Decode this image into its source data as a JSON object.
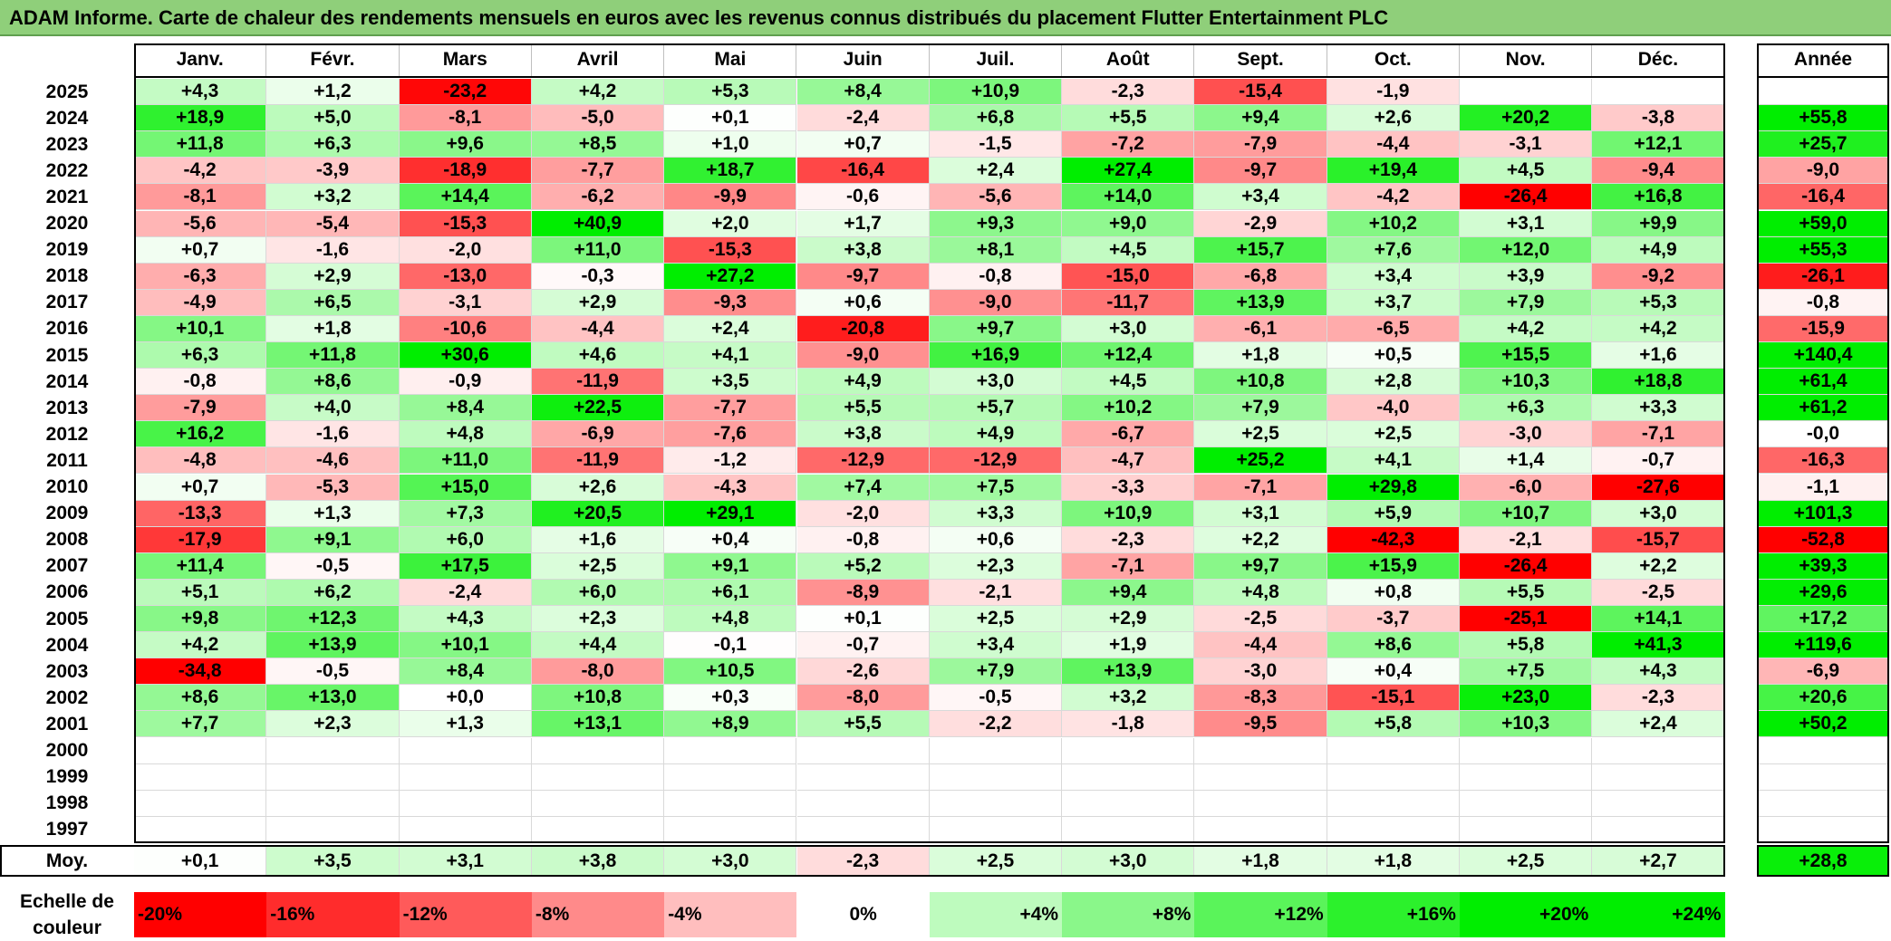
{
  "title": "ADAM Informe. Carte de chaleur des rendements mensuels en euros avec les revenus connus distribués du placement Flutter Entertainment PLC",
  "chart_data": {
    "type": "heatmap",
    "title": "ADAM Informe. Carte de chaleur des rendements mensuels en euros avec les revenus connus distribués du placement Flutter Entertainment PLC",
    "months": [
      "Janv.",
      "Févr.",
      "Mars",
      "Avril",
      "Mai",
      "Juin",
      "Juil.",
      "Août",
      "Sept.",
      "Oct.",
      "Nov.",
      "Déc."
    ],
    "year_header": "Année",
    "rows": [
      {
        "year": "2025",
        "values": [
          "+4,3",
          "+1,2",
          "-23,2",
          "+4,2",
          "+5,3",
          "+8,4",
          "+10,9",
          "-2,3",
          "-15,4",
          "-1,9",
          "",
          ""
        ],
        "annual": ""
      },
      {
        "year": "2024",
        "values": [
          "+18,9",
          "+5,0",
          "-8,1",
          "-5,0",
          "+0,1",
          "-2,4",
          "+6,8",
          "+5,5",
          "+9,4",
          "+2,6",
          "+20,2",
          "-3,8"
        ],
        "annual": "+55,8"
      },
      {
        "year": "2023",
        "values": [
          "+11,8",
          "+6,3",
          "+9,6",
          "+8,5",
          "+1,0",
          "+0,7",
          "-1,5",
          "-7,2",
          "-7,9",
          "-4,4",
          "-3,1",
          "+12,1"
        ],
        "annual": "+25,7"
      },
      {
        "year": "2022",
        "values": [
          "-4,2",
          "-3,9",
          "-18,9",
          "-7,7",
          "+18,7",
          "-16,4",
          "+2,4",
          "+27,4",
          "-9,7",
          "+19,4",
          "+4,5",
          "-9,4"
        ],
        "annual": "-9,0"
      },
      {
        "year": "2021",
        "values": [
          "-8,1",
          "+3,2",
          "+14,4",
          "-6,2",
          "-9,9",
          "-0,6",
          "-5,6",
          "+14,0",
          "+3,4",
          "-4,2",
          "-26,4",
          "+16,8"
        ],
        "annual": "-16,4"
      },
      {
        "year": "2020",
        "values": [
          "-5,6",
          "-5,4",
          "-15,3",
          "+40,9",
          "+2,0",
          "+1,7",
          "+9,3",
          "+9,0",
          "-2,9",
          "+10,2",
          "+3,1",
          "+9,9"
        ],
        "annual": "+59,0"
      },
      {
        "year": "2019",
        "values": [
          "+0,7",
          "-1,6",
          "-2,0",
          "+11,0",
          "-15,3",
          "+3,8",
          "+8,1",
          "+4,5",
          "+15,7",
          "+7,6",
          "+12,0",
          "+4,9"
        ],
        "annual": "+55,3"
      },
      {
        "year": "2018",
        "values": [
          "-6,3",
          "+2,9",
          "-13,0",
          "-0,3",
          "+27,2",
          "-9,7",
          "-0,8",
          "-15,0",
          "-6,8",
          "+3,4",
          "+3,9",
          "-9,2"
        ],
        "annual": "-26,1"
      },
      {
        "year": "2017",
        "values": [
          "-4,9",
          "+6,5",
          "-3,1",
          "+2,9",
          "-9,3",
          "+0,6",
          "-9,0",
          "-11,7",
          "+13,9",
          "+3,7",
          "+7,9",
          "+5,3"
        ],
        "annual": "-0,8"
      },
      {
        "year": "2016",
        "values": [
          "+10,1",
          "+1,8",
          "-10,6",
          "-4,4",
          "+2,4",
          "-20,8",
          "+9,7",
          "+3,0",
          "-6,1",
          "-6,5",
          "+4,2",
          "+4,2"
        ],
        "annual": "-15,9"
      },
      {
        "year": "2015",
        "values": [
          "+6,3",
          "+11,8",
          "+30,6",
          "+4,6",
          "+4,1",
          "-9,0",
          "+16,9",
          "+12,4",
          "+1,8",
          "+0,5",
          "+15,5",
          "+1,6"
        ],
        "annual": "+140,4"
      },
      {
        "year": "2014",
        "values": [
          "-0,8",
          "+8,6",
          "-0,9",
          "-11,9",
          "+3,5",
          "+4,9",
          "+3,0",
          "+4,5",
          "+10,8",
          "+2,8",
          "+10,3",
          "+18,8"
        ],
        "annual": "+61,4"
      },
      {
        "year": "2013",
        "values": [
          "-7,9",
          "+4,0",
          "+8,4",
          "+22,5",
          "-7,7",
          "+5,5",
          "+5,7",
          "+10,2",
          "+7,9",
          "-4,0",
          "+6,3",
          "+3,3"
        ],
        "annual": "+61,2"
      },
      {
        "year": "2012",
        "values": [
          "+16,2",
          "-1,6",
          "+4,8",
          "-6,9",
          "-7,6",
          "+3,8",
          "+4,9",
          "-6,7",
          "+2,5",
          "+2,5",
          "-3,0",
          "-7,1"
        ],
        "annual": "-0,0"
      },
      {
        "year": "2011",
        "values": [
          "-4,8",
          "-4,6",
          "+11,0",
          "-11,9",
          "-1,2",
          "-12,9",
          "-12,9",
          "-4,7",
          "+25,2",
          "+4,1",
          "+1,4",
          "-0,7"
        ],
        "annual": "-16,3"
      },
      {
        "year": "2010",
        "values": [
          "+0,7",
          "-5,3",
          "+15,0",
          "+2,6",
          "-4,3",
          "+7,4",
          "+7,5",
          "-3,3",
          "-7,1",
          "+29,8",
          "-6,0",
          "-27,6"
        ],
        "annual": "-1,1"
      },
      {
        "year": "2009",
        "values": [
          "-13,3",
          "+1,3",
          "+7,3",
          "+20,5",
          "+29,1",
          "-2,0",
          "+3,3",
          "+10,9",
          "+3,1",
          "+5,9",
          "+10,7",
          "+3,0"
        ],
        "annual": "+101,3"
      },
      {
        "year": "2008",
        "values": [
          "-17,9",
          "+9,1",
          "+6,0",
          "+1,6",
          "+0,4",
          "-0,8",
          "+0,6",
          "-2,3",
          "+2,2",
          "-42,3",
          "-2,1",
          "-15,7"
        ],
        "annual": "-52,8"
      },
      {
        "year": "2007",
        "values": [
          "+11,4",
          "-0,5",
          "+17,5",
          "+2,5",
          "+9,1",
          "+5,2",
          "+2,3",
          "-7,1",
          "+9,7",
          "+15,9",
          "-26,4",
          "+2,2"
        ],
        "annual": "+39,3"
      },
      {
        "year": "2006",
        "values": [
          "+5,1",
          "+6,2",
          "-2,4",
          "+6,0",
          "+6,1",
          "-8,9",
          "-2,1",
          "+9,4",
          "+4,8",
          "+0,8",
          "+5,5",
          "-2,5"
        ],
        "annual": "+29,6"
      },
      {
        "year": "2005",
        "values": [
          "+9,8",
          "+12,3",
          "+4,3",
          "+2,3",
          "+4,8",
          "+0,1",
          "+2,5",
          "+2,9",
          "-2,5",
          "-3,7",
          "-25,1",
          "+14,1"
        ],
        "annual": "+17,2"
      },
      {
        "year": "2004",
        "values": [
          "+4,2",
          "+13,9",
          "+10,1",
          "+4,4",
          "-0,1",
          "-0,7",
          "+3,4",
          "+1,9",
          "-4,4",
          "+8,6",
          "+5,8",
          "+41,3"
        ],
        "annual": "+119,6"
      },
      {
        "year": "2003",
        "values": [
          "-34,8",
          "-0,5",
          "+8,4",
          "-8,0",
          "+10,5",
          "-2,6",
          "+7,9",
          "+13,9",
          "-3,0",
          "+0,4",
          "+7,5",
          "+4,3"
        ],
        "annual": "-6,9"
      },
      {
        "year": "2002",
        "values": [
          "+8,6",
          "+13,0",
          "+0,0",
          "+10,8",
          "+0,3",
          "-8,0",
          "-0,5",
          "+3,2",
          "-8,3",
          "-15,1",
          "+23,0",
          "-2,3"
        ],
        "annual": "+20,6"
      },
      {
        "year": "2001",
        "values": [
          "+7,7",
          "+2,3",
          "+1,3",
          "+13,1",
          "+8,9",
          "+5,5",
          "-2,2",
          "-1,8",
          "-9,5",
          "+5,8",
          "+10,3",
          "+2,4"
        ],
        "annual": "+50,2"
      },
      {
        "year": "2000",
        "values": [
          "",
          "",
          "",
          "",
          "",
          "",
          "",
          "",
          "",
          "",
          "",
          ""
        ],
        "annual": ""
      },
      {
        "year": "1999",
        "values": [
          "",
          "",
          "",
          "",
          "",
          "",
          "",
          "",
          "",
          "",
          "",
          ""
        ],
        "annual": ""
      },
      {
        "year": "1998",
        "values": [
          "",
          "",
          "",
          "",
          "",
          "",
          "",
          "",
          "",
          "",
          "",
          ""
        ],
        "annual": ""
      },
      {
        "year": "1997",
        "values": [
          "",
          "",
          "",
          "",
          "",
          "",
          "",
          "",
          "",
          "",
          "",
          ""
        ],
        "annual": ""
      }
    ],
    "average": {
      "label": "Moy.",
      "values": [
        "+0,1",
        "+3,5",
        "+3,1",
        "+3,8",
        "+3,0",
        "-2,3",
        "+2,5",
        "+3,0",
        "+1,8",
        "+1,8",
        "+2,5",
        "+2,7"
      ],
      "annual": "+28,8"
    },
    "scale": {
      "label_line1": "Echelle de",
      "label_line2": "couleur",
      "stops": [
        {
          "label": "-20%",
          "value": -20
        },
        {
          "label": "-16%",
          "value": -16
        },
        {
          "label": "-12%",
          "value": -12
        },
        {
          "label": "-8%",
          "value": -8
        },
        {
          "label": "-4%",
          "value": -4
        },
        {
          "label": "0%",
          "value": 0
        },
        {
          "label": "+4%",
          "value": 4
        },
        {
          "label": "+8%",
          "value": 8
        },
        {
          "label": "+12%",
          "value": 12
        },
        {
          "label": "+16%",
          "value": 16
        },
        {
          "label": "+20%",
          "value": 20
        },
        {
          "label": "+24%",
          "value": 24
        }
      ]
    },
    "colors": {
      "negative_max": "#ff0000",
      "neutral": "#ffffff",
      "positive_max": "#00ee00",
      "title_bar": "#8fcf7a"
    }
  }
}
